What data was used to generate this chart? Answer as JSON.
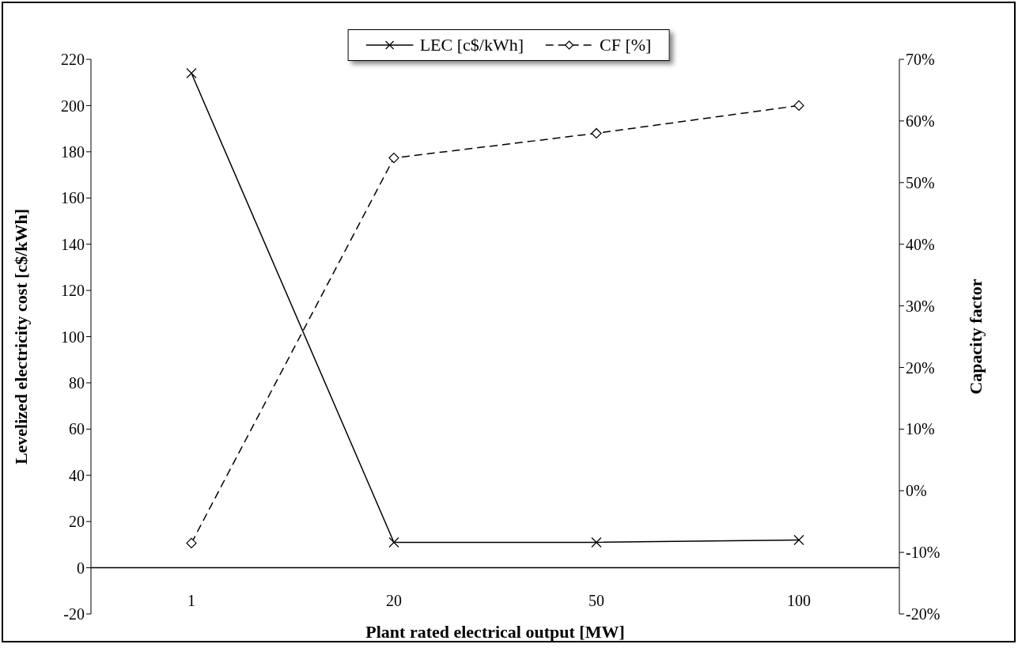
{
  "chart_data": {
    "type": "line",
    "xlabel": "Plant rated electrical output  [MW]",
    "ylabel": "Levelized electricity cost [c$/kWh]",
    "y2label": "Capacity factor",
    "categories": [
      "1",
      "20",
      "50",
      "100"
    ],
    "series": [
      {
        "name": "LEC [c$/kWh]",
        "color": "#000000",
        "values": [
          214,
          11,
          11,
          12
        ],
        "marker": "cross",
        "line_style": "solid"
      },
      {
        "name": "CF [%]",
        "color": "#000000",
        "values": [
          -8.5,
          54,
          58,
          62.5
        ],
        "marker": "diamond",
        "line_style": "dashed",
        "axis": "y2"
      }
    ],
    "ylim": [
      -20,
      220
    ],
    "yticks": [
      -20,
      0,
      20,
      40,
      60,
      80,
      100,
      120,
      140,
      160,
      180,
      200,
      220
    ],
    "y2lim": [
      -20,
      70
    ],
    "y2ticks": [
      {
        "value": -20,
        "label": "-20%"
      },
      {
        "value": -10,
        "label": "-10%"
      },
      {
        "value": 0,
        "label": "0%"
      },
      {
        "value": 10,
        "label": "10%"
      },
      {
        "value": 20,
        "label": "20%"
      },
      {
        "value": 30,
        "label": "30%"
      },
      {
        "value": 40,
        "label": "40%"
      },
      {
        "value": 50,
        "label": "50%"
      },
      {
        "value": 60,
        "label": "60%"
      },
      {
        "value": 70,
        "label": "70%"
      }
    ],
    "grid": false,
    "legend": "top"
  }
}
